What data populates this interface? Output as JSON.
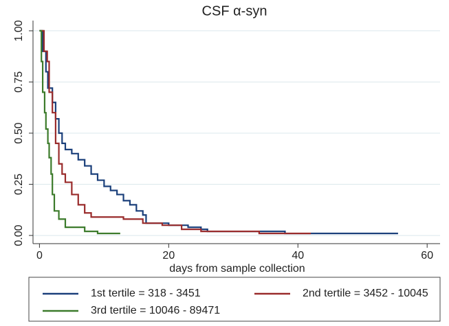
{
  "chart_data": {
    "type": "step",
    "title": "CSF α-syn",
    "x_label": "days from sample collection",
    "xlim": [
      -1,
      62
    ],
    "xticks": [
      0,
      20,
      40,
      60
    ],
    "ylim": [
      -0.04,
      1.05
    ],
    "yticks": [
      {
        "value": 0,
        "label": "0.00"
      },
      {
        "value": 0.25,
        "label": "0.25"
      },
      {
        "value": 0.5,
        "label": "0.50"
      },
      {
        "value": 0.75,
        "label": "0.75"
      },
      {
        "value": 1,
        "label": "1.00"
      }
    ],
    "grid": true,
    "series": [
      {
        "name": "1st tertile = 318 - 3451",
        "color": "#1a3f7a",
        "x": [
          0,
          0.5,
          1,
          1.3,
          2,
          2.5,
          3,
          3.5,
          4,
          5,
          6,
          7,
          8,
          9,
          10,
          11,
          12,
          13,
          14,
          15,
          16,
          16.5,
          20,
          23,
          25,
          26,
          38,
          55.5
        ],
        "values": [
          1,
          0.9,
          0.8,
          0.72,
          0.65,
          0.57,
          0.5,
          0.45,
          0.42,
          0.4,
          0.37,
          0.34,
          0.3,
          0.27,
          0.24,
          0.22,
          0.2,
          0.17,
          0.15,
          0.12,
          0.1,
          0.06,
          0.05,
          0.04,
          0.03,
          0.02,
          0.01,
          0.01
        ]
      },
      {
        "name": "2nd tertile = 3452 - 10045",
        "color": "#992b2b",
        "x": [
          0,
          0.7,
          1.2,
          1.5,
          2,
          2.5,
          3,
          3.5,
          4,
          5,
          6,
          7,
          8,
          10,
          13,
          16,
          19,
          22,
          25,
          33,
          34,
          42
        ],
        "values": [
          1,
          0.9,
          0.85,
          0.7,
          0.6,
          0.45,
          0.35,
          0.3,
          0.26,
          0.2,
          0.15,
          0.11,
          0.09,
          0.09,
          0.08,
          0.06,
          0.05,
          0.03,
          0.02,
          0.02,
          0.01,
          0.01
        ]
      },
      {
        "name": "3rd tertile = 10046 - 89471",
        "color": "#3b7a2a",
        "x": [
          0,
          0.3,
          0.5,
          0.8,
          1,
          1.3,
          1.5,
          1.8,
          2,
          2.3,
          3,
          4,
          7,
          9,
          12.5
        ],
        "values": [
          1,
          0.85,
          0.7,
          0.6,
          0.52,
          0.45,
          0.38,
          0.3,
          0.2,
          0.12,
          0.08,
          0.04,
          0.02,
          0.01,
          0.01
        ]
      }
    ]
  }
}
